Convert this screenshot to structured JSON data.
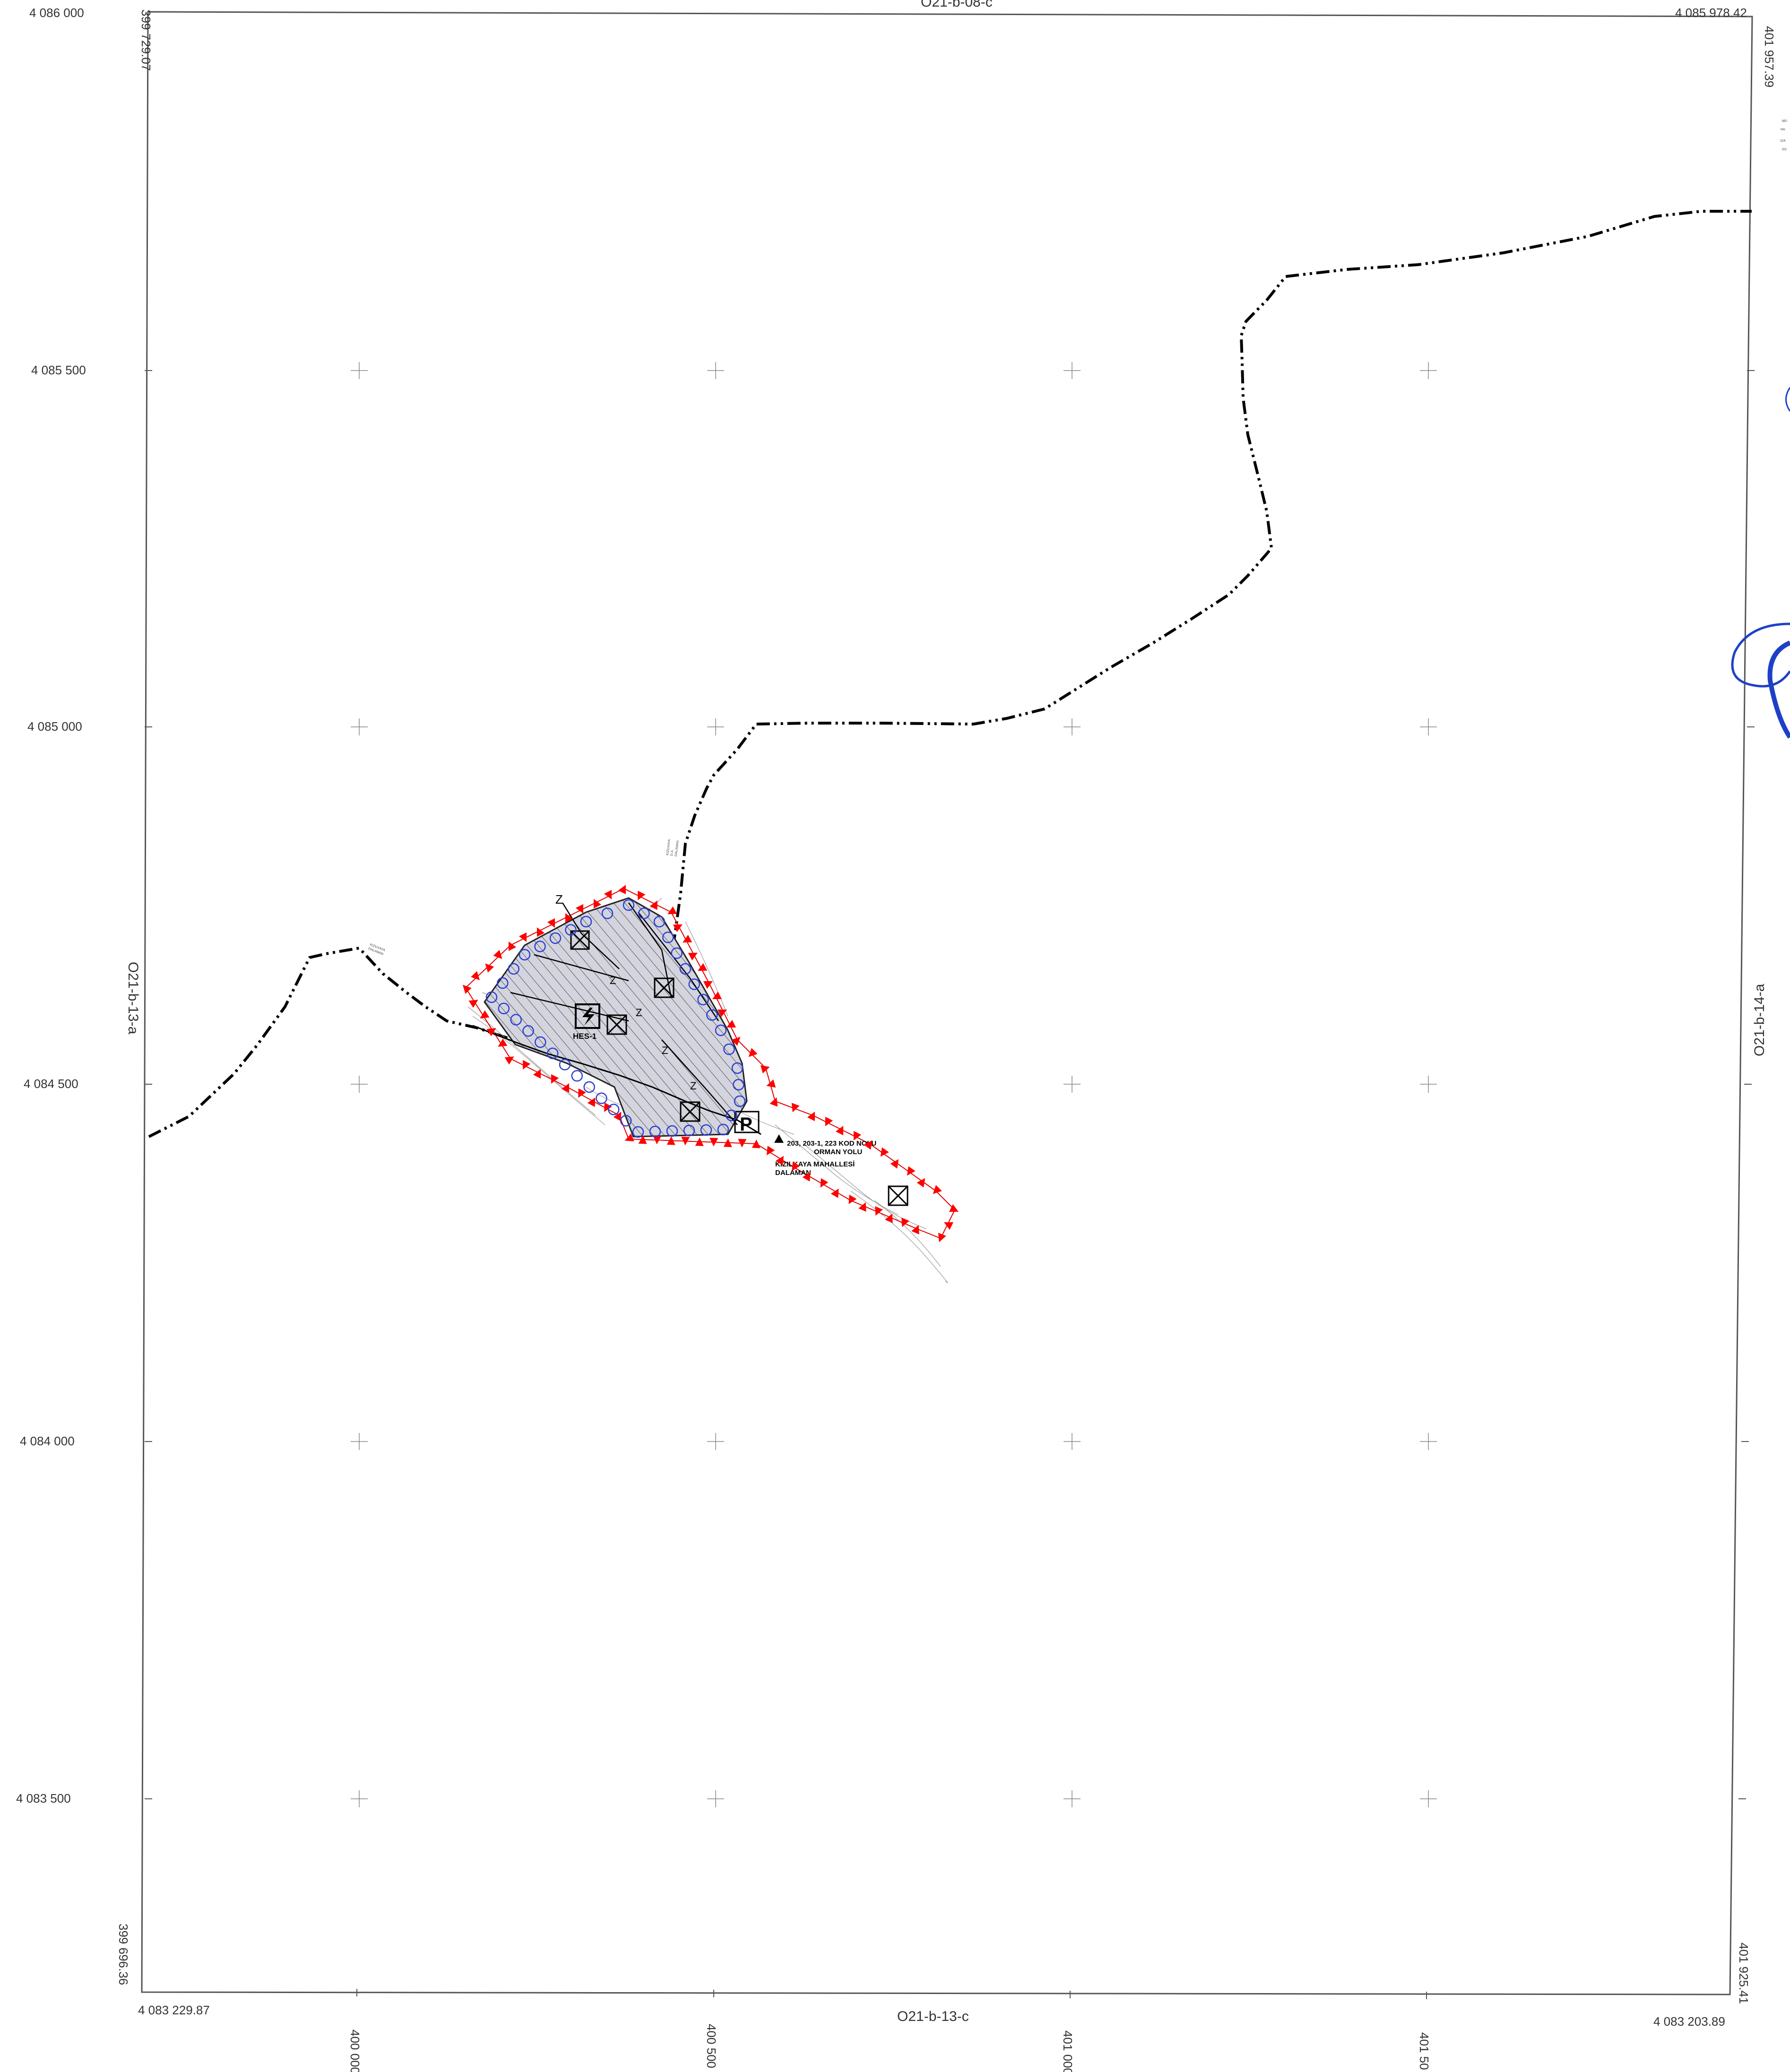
{
  "map": {
    "frame_corners": {
      "top_left_northing": "4 086 000",
      "top_right_northing": "4 085 978.42",
      "bottom_left_northing": "4 083 229.87",
      "bottom_right_northing": "4 083 203.89",
      "left_top_easting": "399 729.07",
      "left_bottom_easting": "399 696.36",
      "right_top_easting": "401 957.39",
      "right_bottom_easting": "401 925.41"
    },
    "adjacent_sheets": {
      "top": "O21-b-08-c",
      "bottom": "O21-b-13-c",
      "left": "O21-b-13-a",
      "right": "O21-b-14-a"
    },
    "northing_ticks": [
      "4 085 500",
      "4 085 000",
      "4 084 500",
      "4 084 000",
      "4 083 500"
    ],
    "easting_ticks": [
      "400 000",
      "400 500",
      "401 000",
      "401 50"
    ],
    "facility_label": "HES-1",
    "road_label_line1": "203, 203-1, 223 KOD NOLU",
    "road_label_line2": "ORMAN YOLU",
    "village_label_line1": "KIZILKAYA MAHALLESİ",
    "village_label_line2": "DALAMAN",
    "boundary_label_left": "KIZILKAYA",
    "boundary_label_left_2": "DALAMAN",
    "boundary_label_top": "KIZILKAYA",
    "boundary_label_top_2": "D.A.",
    "boundary_label_top_3": "DALAMAN",
    "parking_symbol": "P",
    "zone_marker": "Z",
    "edge_stamp_text": [
      "MÜ",
      "YAI",
      "31€",
      "GC"
    ],
    "colors": {
      "boundary_line": "#000000",
      "project_outline": "#e00000",
      "red_markers": "#ff0000",
      "blue_circles": "#2a3fd4",
      "hatch_fill": "#c9cbd6",
      "stamp_blue": "#1e40c8",
      "frame": "#444444"
    }
  }
}
